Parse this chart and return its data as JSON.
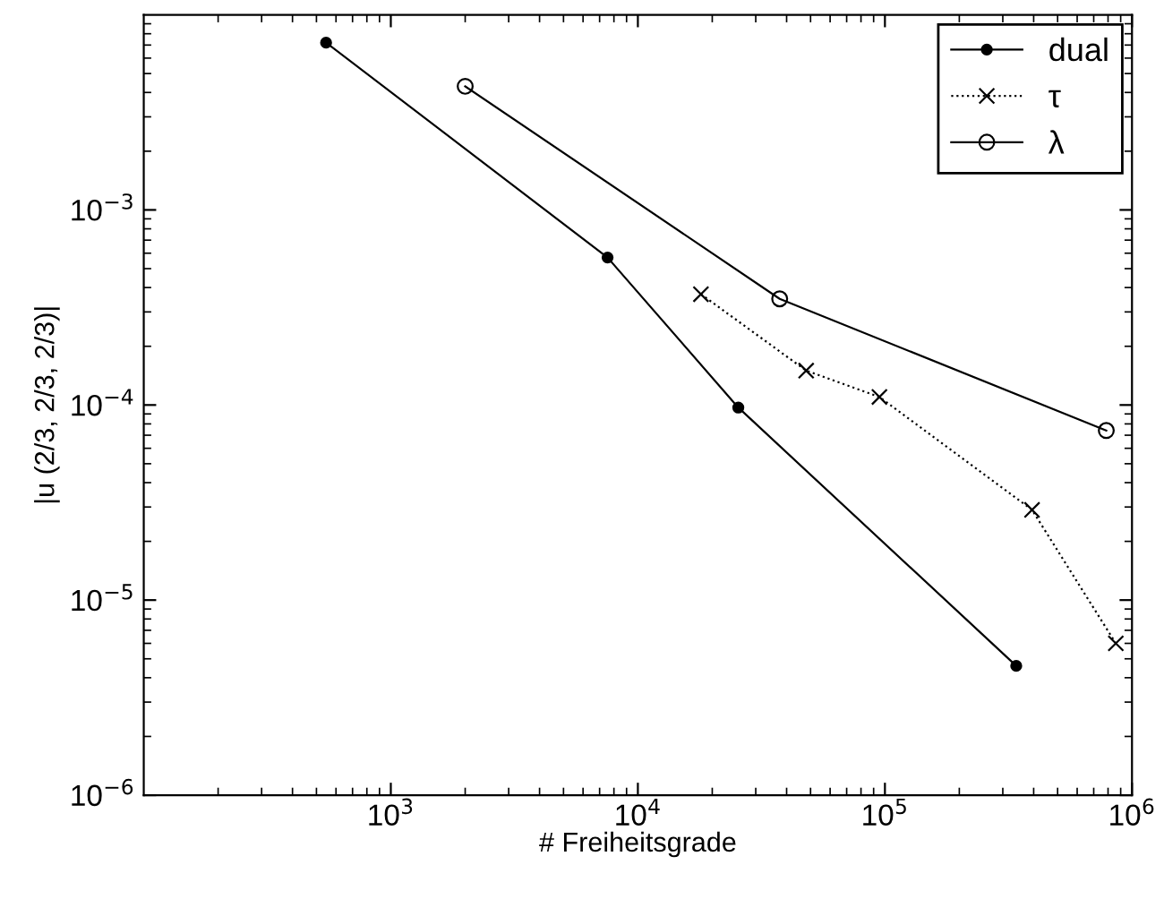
{
  "chart_data": {
    "type": "line",
    "xlabel": "# Freiheitsgrade",
    "ylabel": "|u (2/3, 2/3, 2/3)|",
    "log": "xy",
    "grid": false,
    "legend": "top right",
    "xlim": [
      100,
      1000000
    ],
    "ylim": [
      1e-06,
      0.01
    ],
    "xticks": [
      {
        "value": 1000,
        "label": "10$^{3}$"
      },
      {
        "value": 10000,
        "label": "10$^{4}$"
      },
      {
        "value": 100000,
        "label": "10$^{5}$"
      },
      {
        "value": 1000000,
        "label": "10$^{6}$"
      }
    ],
    "yticks": [
      {
        "value": 1e-06,
        "label": "10$^{−6}$"
      },
      {
        "value": 1e-05,
        "label": "10$^{−5}$"
      },
      {
        "value": 0.0001,
        "label": "10$^{−4}$"
      },
      {
        "value": 0.001,
        "label": "10$^{−3}$"
      }
    ],
    "series": [
      {
        "name": "dual",
        "color": "#000000",
        "marker": "circle",
        "line_style": "solid",
        "x": [
          547,
          7540,
          25500,
          340000
        ],
        "values": [
          0.0072,
          0.00057,
          9.7e-05,
          4.6e-06
        ]
      },
      {
        "name": "τ",
        "color": "#000000",
        "marker": "cross",
        "line_style": "dotted",
        "x": [
          18000,
          48000,
          95000,
          394000,
          860000
        ],
        "values": [
          0.00037,
          0.00015,
          0.00011,
          2.9e-05,
          6e-06
        ]
      },
      {
        "name": "λ",
        "color": "#000000",
        "marker": "circle",
        "line_style": "solid",
        "x": [
          2000,
          37500,
          787000
        ],
        "values": [
          0.0043,
          0.00035,
          7.4e-05
        ]
      }
    ]
  }
}
